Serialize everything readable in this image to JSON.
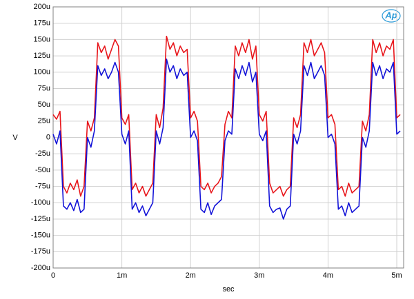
{
  "chart_data": {
    "type": "line",
    "logo": "Ap",
    "ylabel": "V",
    "xlabel": "sec",
    "xlim": [
      0,
      0.0051
    ],
    "ylim": [
      -0.0002,
      0.0002
    ],
    "grid": true,
    "xticks": [
      0,
      {
        "value": 0.001,
        "label": "1m"
      },
      {
        "value": 0.002,
        "label": "2m"
      },
      {
        "value": 0.003,
        "label": "3m"
      },
      {
        "value": 0.004,
        "label": "4m"
      },
      {
        "value": 0.005,
        "label": "5m"
      }
    ],
    "yticks": [
      {
        "value": 0.0002,
        "label": "200u"
      },
      {
        "value": 0.000175,
        "label": "175u"
      },
      {
        "value": 0.00015,
        "label": "150u"
      },
      {
        "value": 0.000125,
        "label": "125u"
      },
      {
        "value": 0.0001,
        "label": "100u"
      },
      {
        "value": 7.5e-05,
        "label": "75u"
      },
      {
        "value": 5e-05,
        "label": "50u"
      },
      {
        "value": 2.5e-05,
        "label": "25u"
      },
      0,
      {
        "value": -2.5e-05,
        "label": "-25u"
      },
      {
        "value": -5e-05,
        "label": "-50u"
      },
      {
        "value": -7.5e-05,
        "label": "-75u"
      },
      {
        "value": -0.0001,
        "label": "-100u"
      },
      {
        "value": -0.000125,
        "label": "-125u"
      },
      {
        "value": -0.00015,
        "label": "-150u"
      },
      {
        "value": -0.000175,
        "label": "-175u"
      },
      {
        "value": -0.0002,
        "label": "-200u"
      }
    ],
    "x": [
      0,
      5e-05,
      0.0001,
      0.00015,
      0.0002,
      0.00025,
      0.0003,
      0.00035,
      0.0004,
      0.00045,
      0.0005,
      0.00055,
      0.0006,
      0.00065,
      0.0007,
      0.00075,
      0.0008,
      0.00085,
      0.0009,
      0.00095,
      0.001,
      0.00105,
      0.0011,
      0.00115,
      0.0012,
      0.00125,
      0.0013,
      0.00135,
      0.0014,
      0.00145,
      0.0015,
      0.00155,
      0.0016,
      0.00165,
      0.0017,
      0.00175,
      0.0018,
      0.00185,
      0.0019,
      0.00195,
      0.002,
      0.00205,
      0.0021,
      0.00215,
      0.0022,
      0.00225,
      0.0023,
      0.00235,
      0.0024,
      0.00245,
      0.0025,
      0.00255,
      0.0026,
      0.00265,
      0.0027,
      0.00275,
      0.0028,
      0.00285,
      0.0029,
      0.00295,
      0.003,
      0.00305,
      0.0031,
      0.00315,
      0.0032,
      0.00325,
      0.0033,
      0.00335,
      0.0034,
      0.00345,
      0.0035,
      0.00355,
      0.0036,
      0.00365,
      0.0037,
      0.00375,
      0.0038,
      0.00385,
      0.0039,
      0.00395,
      0.004,
      0.00405,
      0.0041,
      0.00415,
      0.0042,
      0.00425,
      0.0043,
      0.00435,
      0.0044,
      0.00445,
      0.0045,
      0.00455,
      0.0046,
      0.00465,
      0.0047,
      0.00475,
      0.0048,
      0.00485,
      0.0049,
      0.00495,
      0.005,
      0.00505
    ],
    "series": [
      {
        "color": "#e8161b",
        "values": [
          3.5e-05,
          2.8e-05,
          4e-05,
          -7.5e-05,
          -8.5e-05,
          -7e-05,
          -8e-05,
          -6.5e-05,
          -9e-05,
          -7.5e-05,
          2.5e-05,
          1e-05,
          3e-05,
          0.000145,
          0.00013,
          0.00014,
          0.00012,
          0.000135,
          0.00015,
          0.00014,
          3e-05,
          2e-05,
          3.5e-05,
          -8e-05,
          -7e-05,
          -8.5e-05,
          -7.5e-05,
          -9e-05,
          -8e-05,
          -7e-05,
          3.5e-05,
          1.5e-05,
          4.5e-05,
          0.000155,
          0.000135,
          0.000145,
          0.000125,
          0.00014,
          0.00013,
          0.000135,
          3e-05,
          4e-05,
          2.5e-05,
          -7.5e-05,
          -8e-05,
          -7e-05,
          -8.5e-05,
          -7.5e-05,
          -7e-05,
          -6e-05,
          2e-05,
          4e-05,
          3e-05,
          0.00014,
          0.000125,
          0.000145,
          0.00013,
          0.00015,
          0.00012,
          0.00014,
          3.5e-05,
          2.5e-05,
          4e-05,
          -7e-05,
          -8.5e-05,
          -8e-05,
          -7.5e-05,
          -9e-05,
          -8e-05,
          -7.5e-05,
          3e-05,
          1.5e-05,
          3.5e-05,
          0.000145,
          0.00013,
          0.00015,
          0.000125,
          0.000135,
          0.000145,
          0.00013,
          3e-05,
          3.5e-05,
          2e-05,
          -8e-05,
          -7.5e-05,
          -9e-05,
          -7e-05,
          -8.5e-05,
          -8e-05,
          -7.5e-05,
          2.5e-05,
          1e-05,
          3.5e-05,
          0.00015,
          0.00013,
          0.000145,
          0.000125,
          0.00014,
          0.000135,
          0.00015,
          3e-05,
          3.5e-05
        ]
      },
      {
        "color": "#1414d8",
        "values": [
          5e-06,
          -1e-05,
          1e-05,
          -0.000105,
          -0.00011,
          -0.0001,
          -0.000112,
          -9.5e-05,
          -0.000115,
          -0.00011,
          0,
          -1.5e-05,
          1e-05,
          0.00011,
          9.5e-05,
          0.000105,
          9e-05,
          0.0001,
          0.000115,
          0.0001,
          5e-06,
          -1e-05,
          1e-05,
          -0.00011,
          -0.0001,
          -0.000115,
          -0.000105,
          -0.00012,
          -0.00011,
          -0.0001,
          1e-05,
          -1e-05,
          1.5e-05,
          0.00012,
          0.0001,
          0.00011,
          9e-05,
          0.000105,
          9.5e-05,
          0.0001,
          0,
          1e-05,
          -5e-06,
          -0.00011,
          -0.000115,
          -0.0001,
          -0.000118,
          -0.000105,
          -0.0001,
          -9.5e-05,
          -5e-06,
          1e-05,
          5e-06,
          0.000105,
          9e-05,
          0.00011,
          9.5e-05,
          0.000115,
          8.5e-05,
          0.0001,
          5e-06,
          -5e-06,
          1e-05,
          -0.000105,
          -0.000115,
          -0.00011,
          -0.000108,
          -0.000125,
          -0.00011,
          -0.000105,
          5e-06,
          -1e-05,
          1e-05,
          0.00011,
          9.5e-05,
          0.000115,
          9e-05,
          0.0001,
          0.00011,
          9.5e-05,
          0,
          5e-06,
          -1e-05,
          -0.00011,
          -0.000105,
          -0.00012,
          -0.0001,
          -0.000115,
          -0.00011,
          -0.000105,
          0,
          -1.5e-05,
          1e-05,
          0.000115,
          9.5e-05,
          0.00011,
          9e-05,
          0.000105,
          0.0001,
          0.000115,
          5e-06,
          1e-05
        ]
      }
    ]
  }
}
